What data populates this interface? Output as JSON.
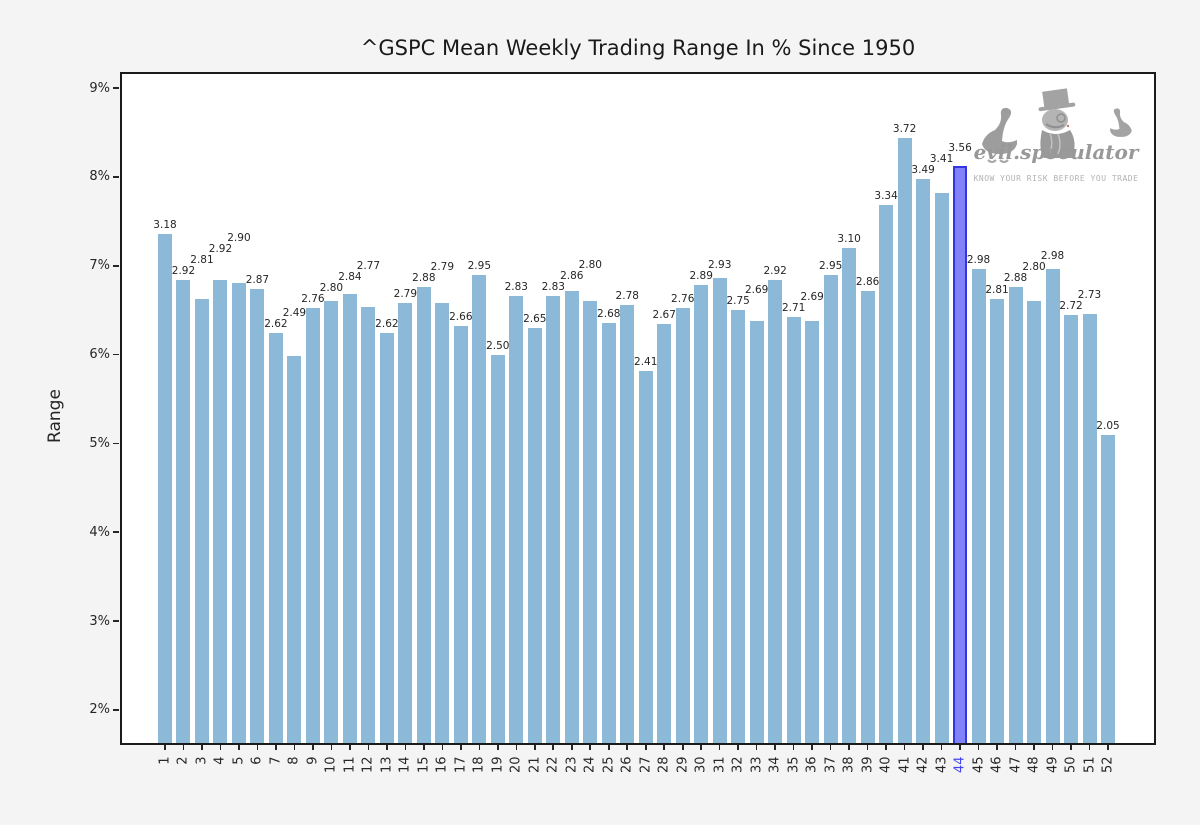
{
  "title": "^GSPC Mean Weekly Trading Range In % Since 1950",
  "y_axis": {
    "label": "Range",
    "tick_labels": [
      "9%",
      "8%",
      "7%",
      "6%",
      "5%",
      "4%",
      "3%",
      "2%"
    ]
  },
  "x_axis": {
    "highlighted_tick": "44"
  },
  "logo": {
    "brand": "evil.speculator",
    "tagline": "KNOW YOUR RISK BEFORE YOU TRADE"
  },
  "colors": {
    "background": "#f4f4f4",
    "plot_background": "#ffffff",
    "spine": "#1b1b1b",
    "bar": "#8db9d9",
    "highlight_bar_fill": "#8181fa",
    "highlight_bar_border": "#3434e0",
    "highlight_tick_text": "#4444ee",
    "text": "#262626",
    "logo_gray": "#a0a0a0"
  },
  "chart_data": {
    "type": "bar",
    "title": "^GSPC Mean Weekly Trading Range In % Since 1950",
    "xlabel": "",
    "ylabel": "Range",
    "categories": [
      1,
      2,
      3,
      4,
      5,
      6,
      7,
      8,
      9,
      10,
      11,
      12,
      13,
      14,
      15,
      16,
      17,
      18,
      19,
      20,
      21,
      22,
      23,
      24,
      25,
      26,
      27,
      28,
      29,
      30,
      31,
      32,
      33,
      34,
      35,
      36,
      37,
      38,
      39,
      40,
      41,
      42,
      43,
      44,
      45,
      46,
      47,
      48,
      49,
      50,
      51,
      52
    ],
    "values": [
      3.18,
      2.92,
      2.81,
      2.92,
      2.9,
      2.87,
      2.62,
      2.49,
      2.76,
      2.8,
      2.84,
      2.77,
      2.62,
      2.79,
      2.88,
      2.79,
      2.66,
      2.95,
      2.5,
      2.83,
      2.65,
      2.83,
      2.86,
      2.8,
      2.68,
      2.78,
      2.41,
      2.67,
      2.76,
      2.89,
      2.93,
      2.75,
      2.69,
      2.92,
      2.71,
      2.69,
      2.95,
      3.1,
      2.86,
      3.34,
      3.72,
      3.49,
      3.41,
      3.56,
      2.98,
      2.81,
      2.88,
      2.8,
      2.98,
      2.72,
      2.73,
      2.05
    ],
    "bar_top_axis_pct": [
      7.36,
      6.84,
      6.62,
      6.84,
      6.8,
      6.74,
      6.24,
      5.98,
      6.52,
      6.6,
      6.68,
      6.54,
      6.24,
      6.58,
      6.76,
      6.58,
      6.32,
      6.9,
      6.0,
      6.66,
      6.3,
      6.66,
      6.72,
      6.6,
      6.36,
      6.56,
      5.82,
      6.34,
      6.52,
      6.78,
      6.86,
      6.5,
      6.38,
      6.84,
      6.42,
      6.38,
      6.9,
      7.2,
      6.72,
      7.68,
      8.44,
      7.98,
      7.82,
      8.12,
      6.96,
      6.62,
      6.76,
      6.6,
      6.96,
      6.44,
      6.46,
      5.1
    ],
    "highlighted_category": 44,
    "value_labels_shown": true,
    "grid": false,
    "legend": false,
    "ytick_percent": [
      2,
      3,
      4,
      5,
      6,
      7,
      8,
      9
    ],
    "ylim": [
      1.6,
      9.2
    ]
  }
}
